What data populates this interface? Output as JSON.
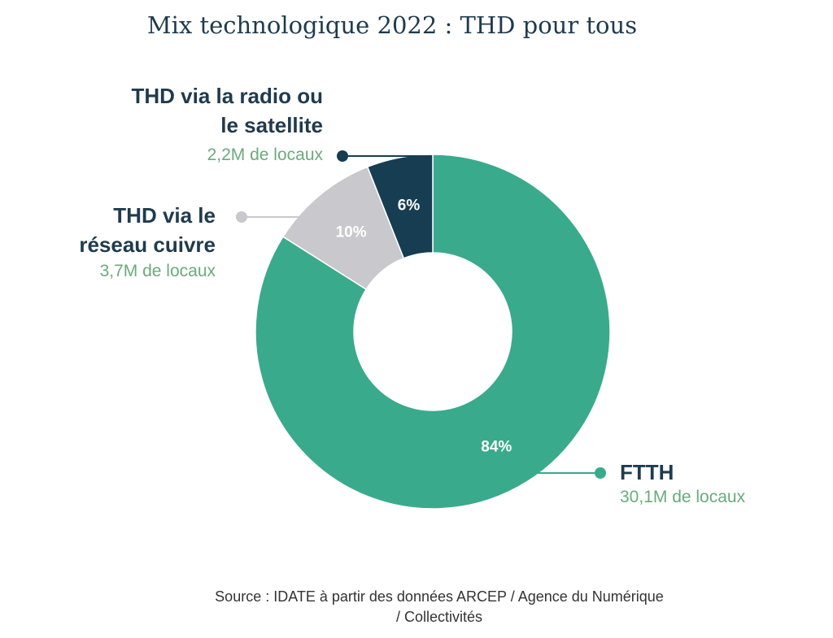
{
  "chart_data": {
    "type": "donut",
    "title": "Mix technologique 2022 : THD pour tous",
    "categories": [
      "FTTH",
      "THD via le réseau cuivre",
      "THD via la radio ou le satellite"
    ],
    "values": [
      84,
      10,
      6
    ],
    "value_labels": [
      "84%",
      "10%",
      "6%"
    ],
    "annotations": [
      "30,1M de locaux",
      "3,7M de locaux",
      "2,2M de locaux"
    ],
    "colors": [
      "#3aaa8c",
      "#c9c9cd",
      "#163d52"
    ],
    "source": "Source : IDATE à partir des données ARCEP / Agence du Numérique / Collectivités"
  }
}
